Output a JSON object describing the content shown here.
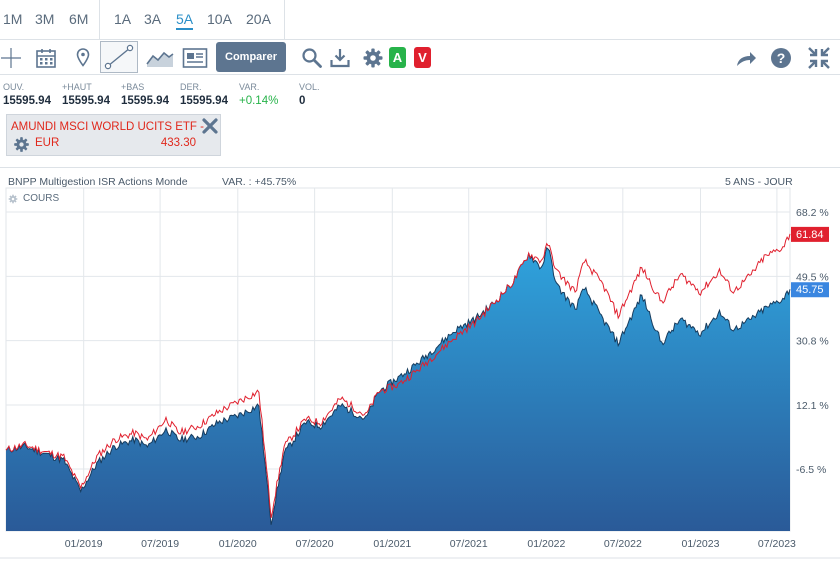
{
  "periods": [
    {
      "label": "1M",
      "active": false
    },
    {
      "label": "3M",
      "active": false
    },
    {
      "label": "6M",
      "active": false
    },
    {
      "label": "1A",
      "active": false
    },
    {
      "label": "3A",
      "active": false
    },
    {
      "label": "5A",
      "active": true
    },
    {
      "label": "10A",
      "active": false
    },
    {
      "label": "20A",
      "active": false
    }
  ],
  "toolbar": {
    "compare_label": "Comparer",
    "a_label": "A",
    "v_label": "V",
    "icons": [
      "crosshair-icon",
      "calendar-icon",
      "location-pin-icon",
      "line-draw-icon",
      "area-chart-icon",
      "newspaper-icon",
      "search-icon",
      "download-icon",
      "gear-icon",
      "share-arrow-icon",
      "help-icon",
      "fullscreen-icon"
    ],
    "colors": {
      "a": "#27b34a",
      "v": "#e0202e",
      "compare_bg": "#5d7590"
    }
  },
  "quote": {
    "ouv_label": "OUV.",
    "ouv": "15595.94",
    "haut_label": "+HAUT",
    "haut": "15595.94",
    "bas_label": "+BAS",
    "bas": "15595.94",
    "der_label": "DER.",
    "der": "15595.94",
    "var_label": "VAR.",
    "var": "+0.14%",
    "vol_label": "VOL.",
    "vol": "0"
  },
  "comparison": {
    "name": "AMUNDI MSCI WORLD UCITS ETF -",
    "currency": "EUR",
    "value": "433.30"
  },
  "chart_header": {
    "name": "BNPP Multigestion ISR Actions Monde",
    "var": "VAR. : +45.75%",
    "period": "5 ANS - JOUR",
    "series_label": "COURS"
  },
  "chart_data": {
    "type": "area",
    "x_ticks": [
      "01/2019",
      "07/2019",
      "01/2020",
      "07/2020",
      "01/2021",
      "07/2021",
      "01/2022",
      "07/2022",
      "01/2023",
      "07/2023"
    ],
    "y_ticks": [
      "68.2 %",
      "49.5 %",
      "30.8 %",
      "12.1 %",
      "-6.5 %"
    ],
    "y_tick_values": [
      68.2,
      49.5,
      30.8,
      12.1,
      -6.5
    ],
    "ylim": [
      -25,
      68.2
    ],
    "x_range": [
      "2018-07",
      "2023-08"
    ],
    "series": [
      {
        "color": "#1f6fb0",
        "last_label": "45.75",
        "points": [
          [
            "2018-07-01",
            -1
          ],
          [
            "2018-08-15",
            0
          ],
          [
            "2018-10-01",
            -2
          ],
          [
            "2018-11-15",
            -4
          ],
          [
            "2018-12-25",
            -13
          ],
          [
            "2019-02-01",
            -5
          ],
          [
            "2019-03-15",
            0
          ],
          [
            "2019-05-01",
            2
          ],
          [
            "2019-06-01",
            0
          ],
          [
            "2019-07-15",
            5
          ],
          [
            "2019-08-15",
            2
          ],
          [
            "2019-10-01",
            3
          ],
          [
            "2019-11-15",
            7
          ],
          [
            "2020-01-01",
            9
          ],
          [
            "2020-02-20",
            12
          ],
          [
            "2020-03-20",
            -22
          ],
          [
            "2020-04-20",
            -2
          ],
          [
            "2020-06-10",
            7
          ],
          [
            "2020-07-15",
            6
          ],
          [
            "2020-09-01",
            12
          ],
          [
            "2020-10-30",
            8
          ],
          [
            "2020-11-30",
            16
          ],
          [
            "2021-01-15",
            20
          ],
          [
            "2021-02-28",
            24
          ],
          [
            "2021-04-15",
            29
          ],
          [
            "2021-06-01",
            34
          ],
          [
            "2021-07-15",
            37
          ],
          [
            "2021-09-01",
            42
          ],
          [
            "2021-10-15",
            48
          ],
          [
            "2021-11-20",
            56
          ],
          [
            "2021-12-20",
            52
          ],
          [
            "2022-01-05",
            58
          ],
          [
            "2022-01-25",
            47
          ],
          [
            "2022-03-10",
            40
          ],
          [
            "2022-04-01",
            46
          ],
          [
            "2022-05-15",
            37
          ],
          [
            "2022-06-20",
            30
          ],
          [
            "2022-08-15",
            44
          ],
          [
            "2022-10-01",
            30
          ],
          [
            "2022-11-15",
            37
          ],
          [
            "2023-01-01",
            33
          ],
          [
            "2023-02-15",
            39
          ],
          [
            "2023-03-20",
            34
          ],
          [
            "2023-05-01",
            37
          ],
          [
            "2023-06-01",
            40
          ],
          [
            "2023-07-15",
            43
          ],
          [
            "2023-08-01",
            45.75
          ]
        ]
      },
      {
        "color": "#e0202e",
        "last_label": "61.84",
        "points": [
          [
            "2018-07-01",
            -1
          ],
          [
            "2018-08-15",
            0.5
          ],
          [
            "2018-10-01",
            -1.5
          ],
          [
            "2018-11-15",
            -3
          ],
          [
            "2018-12-25",
            -12
          ],
          [
            "2019-02-01",
            -3
          ],
          [
            "2019-03-15",
            2
          ],
          [
            "2019-05-01",
            4
          ],
          [
            "2019-06-01",
            2
          ],
          [
            "2019-07-15",
            8
          ],
          [
            "2019-08-15",
            4
          ],
          [
            "2019-10-01",
            6
          ],
          [
            "2019-11-15",
            10
          ],
          [
            "2020-01-01",
            13
          ],
          [
            "2020-02-20",
            16
          ],
          [
            "2020-03-20",
            -20
          ],
          [
            "2020-04-20",
            0
          ],
          [
            "2020-06-10",
            8
          ],
          [
            "2020-07-15",
            7
          ],
          [
            "2020-09-01",
            14
          ],
          [
            "2020-10-30",
            9
          ],
          [
            "2020-11-30",
            16
          ],
          [
            "2021-01-15",
            18
          ],
          [
            "2021-02-28",
            22
          ],
          [
            "2021-04-15",
            27
          ],
          [
            "2021-06-01",
            32
          ],
          [
            "2021-07-15",
            36
          ],
          [
            "2021-09-01",
            42
          ],
          [
            "2021-10-15",
            48
          ],
          [
            "2021-11-20",
            56
          ],
          [
            "2021-12-20",
            54
          ],
          [
            "2022-01-05",
            59
          ],
          [
            "2022-01-25",
            51
          ],
          [
            "2022-03-10",
            45
          ],
          [
            "2022-04-01",
            54
          ],
          [
            "2022-05-15",
            47
          ],
          [
            "2022-06-20",
            38
          ],
          [
            "2022-08-15",
            52
          ],
          [
            "2022-10-01",
            42
          ],
          [
            "2022-11-15",
            50
          ],
          [
            "2023-01-01",
            45
          ],
          [
            "2023-02-15",
            51
          ],
          [
            "2023-03-20",
            45
          ],
          [
            "2023-05-01",
            50
          ],
          [
            "2023-06-01",
            55
          ],
          [
            "2023-07-15",
            58
          ],
          [
            "2023-08-01",
            61.84
          ]
        ]
      }
    ]
  }
}
